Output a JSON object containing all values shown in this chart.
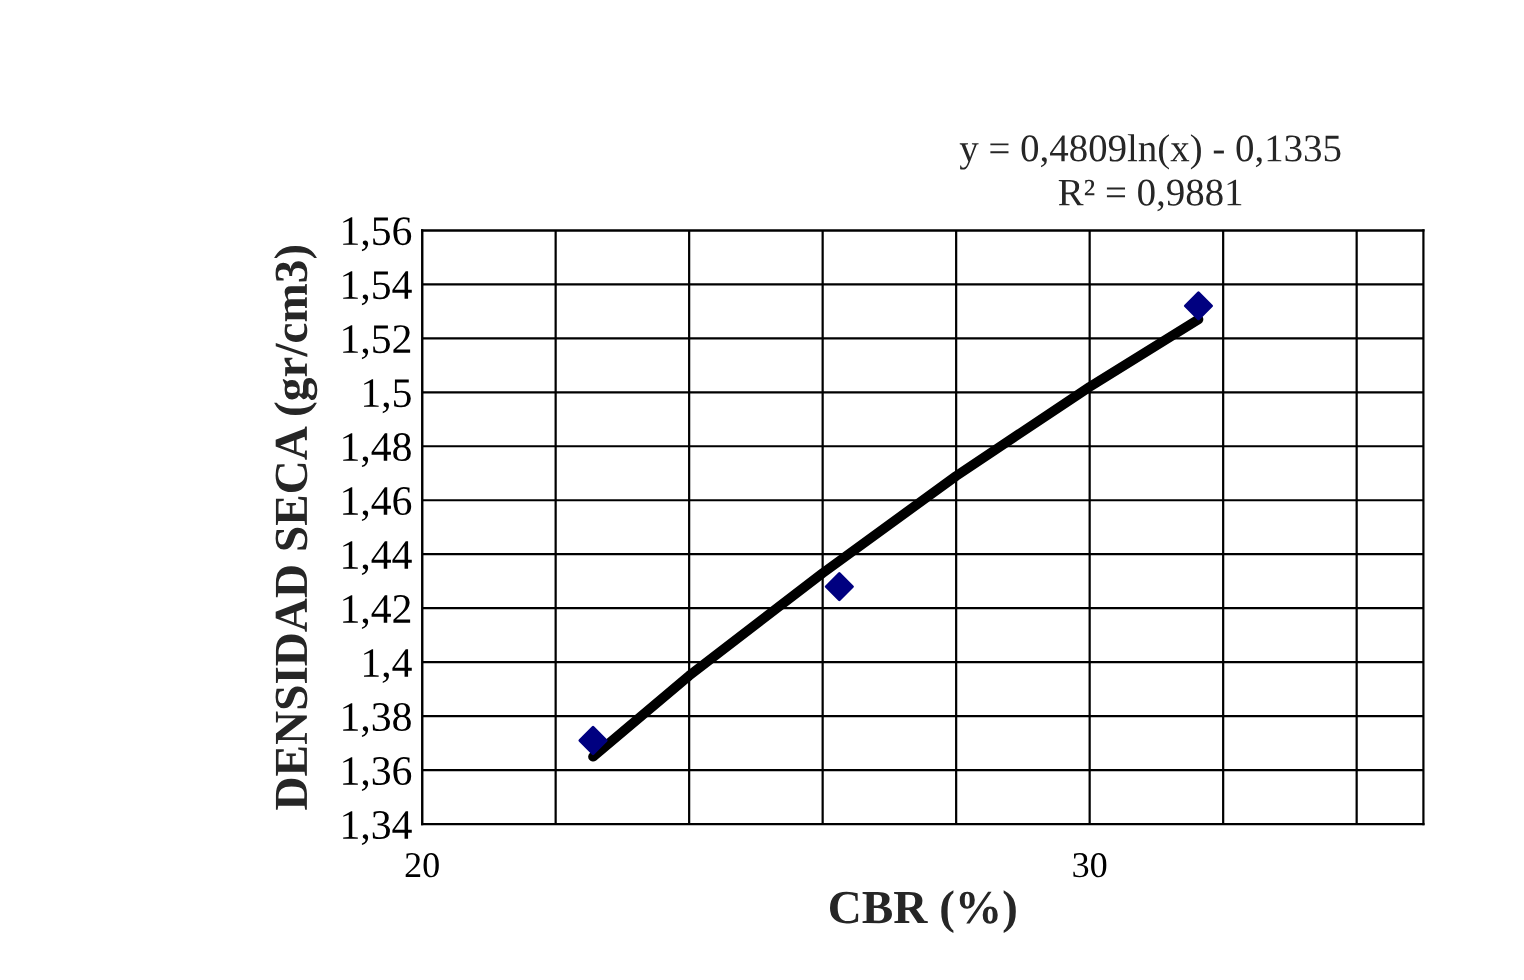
{
  "chart_data": {
    "type": "scatter",
    "xlabel": "CBR (%)",
    "ylabel": "DENSIDAD SECA (gr/cm3)",
    "annotations": [
      "y = 0,4809ln(x) - 0,1335",
      "R² = 0,9881"
    ],
    "series": [
      {
        "color": "#000080",
        "marker": "diamond",
        "x": [
          22.56,
          26.25,
          31.63
        ],
        "values": [
          1.371,
          1.428,
          1.532
        ]
      },
      {
        "type": "line",
        "color": "#000000",
        "x": [
          22.56,
          24,
          26,
          28,
          30,
          31.63
        ],
        "values": [
          1.365,
          1.395,
          1.433,
          1.469,
          1.502,
          1.527
        ]
      }
    ],
    "xlim": [
      20,
      35
    ],
    "xticks": [
      20,
      {
        "value": 22,
        "label": null
      },
      {
        "value": 24,
        "label": null
      },
      {
        "value": 26,
        "label": null
      },
      {
        "value": 28,
        "label": null
      },
      30,
      {
        "value": 32,
        "label": null
      },
      {
        "value": 34,
        "label": null
      }
    ],
    "ylim": [
      1.34,
      1.56
    ],
    "yticks": [
      {
        "value": 1.34,
        "label": "1,34"
      },
      {
        "value": 1.36,
        "label": "1,36"
      },
      {
        "value": 1.38,
        "label": "1,38"
      },
      {
        "value": 1.4,
        "label": "1,4"
      },
      {
        "value": 1.42,
        "label": "1,42"
      },
      {
        "value": 1.44,
        "label": "1,44"
      },
      {
        "value": 1.46,
        "label": "1,46"
      },
      {
        "value": 1.48,
        "label": "1,48"
      },
      {
        "value": 1.5,
        "label": "1,5"
      },
      {
        "value": 1.52,
        "label": "1,52"
      },
      {
        "value": 1.54,
        "label": "1,54"
      },
      {
        "value": 1.56,
        "label": "1,56"
      }
    ],
    "grid": true
  }
}
